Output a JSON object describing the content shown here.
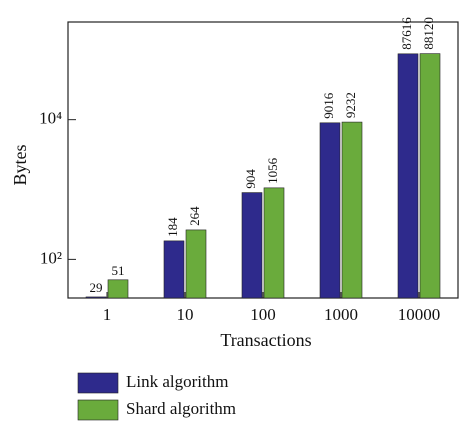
{
  "chart_data": {
    "type": "bar",
    "x_label": "Transactions",
    "y_label": "Bytes",
    "categories": [
      "1",
      "10",
      "100",
      "1000",
      "10000"
    ],
    "series": [
      {
        "name": "Link algorithm",
        "color": "#2e2a8c",
        "values": [
          29,
          184,
          904,
          9016,
          87616
        ]
      },
      {
        "name": "Shard algorithm",
        "color": "#6aab3c",
        "values": [
          51,
          264,
          1056,
          9232,
          88120
        ]
      }
    ],
    "ylim": [
      28,
      250000
    ],
    "log_y": true,
    "yticks": [
      {
        "value": 100,
        "label": "10²"
      },
      {
        "value": 10000,
        "label": "10⁴"
      }
    ],
    "legend": "bottom"
  }
}
